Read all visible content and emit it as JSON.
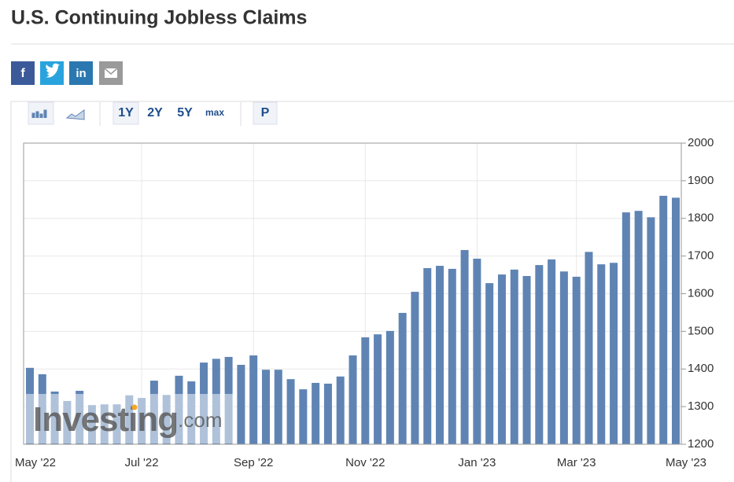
{
  "header": {
    "title": "U.S. Continuing Jobless Claims"
  },
  "share": {
    "facebook": "f",
    "linkedin": "in"
  },
  "toolbar": {
    "ranges": [
      "1Y",
      "2Y",
      "5Y",
      "max"
    ],
    "print": "P"
  },
  "watermark": {
    "brand": "Investing",
    "suffix": ".com"
  },
  "chart_data": {
    "type": "bar",
    "categories": [
      "May '22",
      null,
      null,
      null,
      null,
      null,
      null,
      null,
      null,
      "Jul '22",
      null,
      null,
      null,
      null,
      null,
      null,
      null,
      null,
      "Sep '22",
      null,
      null,
      null,
      null,
      null,
      null,
      null,
      null,
      "Nov '22",
      null,
      null,
      null,
      null,
      null,
      null,
      null,
      null,
      "Jan '23",
      null,
      null,
      null,
      null,
      null,
      null,
      null,
      "Mar '23",
      null,
      null,
      null,
      null,
      null,
      null,
      null,
      "May '23"
    ],
    "values": [
      1403,
      1386,
      1340,
      1315,
      1342,
      1304,
      1306,
      1306,
      1330,
      1323,
      1369,
      1331,
      1382,
      1367,
      1417,
      1427,
      1432,
      1411,
      1436,
      1398,
      1398,
      1373,
      1346,
      1363,
      1361,
      1380,
      1436,
      1484,
      1492,
      1501,
      1549,
      1605,
      1668,
      1674,
      1666,
      1716,
      1693,
      1628,
      1651,
      1664,
      1647,
      1676,
      1691,
      1659,
      1645,
      1711,
      1678,
      1682,
      1816,
      1820,
      1803,
      1860,
      1855
    ],
    "color": "#5f84b4",
    "ylim": [
      1200,
      2000
    ],
    "yticks": [
      1200,
      1300,
      1400,
      1500,
      1600,
      1700,
      1800,
      1900,
      2000
    ],
    "grid": true
  }
}
